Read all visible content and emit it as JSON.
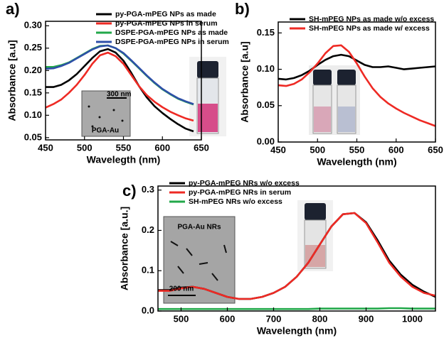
{
  "chart_data": [
    {
      "type": "line",
      "panel_label": "a)",
      "x_label": "Wavelegth (nm)",
      "y_label": "Absorbance [a.u]",
      "xlim": [
        450,
        650
      ],
      "xticks": [
        450,
        500,
        550,
        600,
        650
      ],
      "ylim": [
        0.045,
        0.31
      ],
      "yticks": [
        0.05,
        {
          "value": 0.1,
          "label": "0.10"
        },
        0.15,
        {
          "value": 0.2,
          "label": "0.20"
        },
        0.25,
        {
          "value": 0.3,
          "label": "0.30"
        }
      ],
      "legend": "upper right",
      "inset_labels": [
        "300 nm",
        "PGA-Au"
      ],
      "x": [
        450,
        460,
        470,
        480,
        490,
        500,
        510,
        520,
        530,
        540,
        550,
        560,
        570,
        580,
        590,
        600,
        610,
        620,
        630,
        640
      ],
      "series": [
        {
          "name": "py-PGA-mPEG NPs as made",
          "color": "#000000",
          "values": [
            0.163,
            0.163,
            0.168,
            0.178,
            0.192,
            0.21,
            0.228,
            0.243,
            0.248,
            0.24,
            0.222,
            0.195,
            0.165,
            0.14,
            0.12,
            0.105,
            0.092,
            0.08,
            0.07,
            0.064
          ]
        },
        {
          "name": "py-PGA-mPEG NPs in serum",
          "color": "#ee2a24",
          "values": [
            0.117,
            0.125,
            0.135,
            0.15,
            0.168,
            0.19,
            0.215,
            0.234,
            0.24,
            0.232,
            0.215,
            0.19,
            0.165,
            0.145,
            0.13,
            0.118,
            0.108,
            0.1,
            0.093,
            0.088
          ]
        },
        {
          "name": "DSPE-PGA-mPEG NPs as made",
          "color": "#22a84a",
          "values": [
            0.208,
            0.208,
            0.212,
            0.218,
            0.228,
            0.238,
            0.248,
            0.255,
            0.256,
            0.25,
            0.238,
            0.222,
            0.205,
            0.188,
            0.172,
            0.158,
            0.147,
            0.137,
            0.13,
            0.124
          ]
        },
        {
          "name": "DSPE-PGA-mPEG NPs in serum",
          "color": "#2e4fa8",
          "values": [
            0.204,
            0.205,
            0.21,
            0.217,
            0.227,
            0.237,
            0.247,
            0.254,
            0.256,
            0.25,
            0.239,
            0.223,
            0.206,
            0.189,
            0.173,
            0.159,
            0.148,
            0.138,
            0.131,
            0.125
          ]
        }
      ]
    },
    {
      "type": "line",
      "panel_label": "b)",
      "x_label": "Wavelength (nm)",
      "y_label": "Absorbance [a.u]",
      "xlim": [
        450,
        650
      ],
      "xticks": [
        450,
        500,
        550,
        600,
        650
      ],
      "ylim": [
        0,
        0.165
      ],
      "yticks": [
        {
          "value": 0,
          "label": "0.00"
        },
        0.05,
        {
          "value": 0.1,
          "label": "0.10"
        },
        0.15
      ],
      "legend": "upper left",
      "x": [
        450,
        460,
        470,
        480,
        490,
        500,
        510,
        520,
        530,
        540,
        550,
        560,
        570,
        580,
        590,
        600,
        610,
        620,
        630,
        640,
        650
      ],
      "series": [
        {
          "name": "SH-mPEG NPs as made w/o excess",
          "color": "#000000",
          "values": [
            0.087,
            0.086,
            0.088,
            0.092,
            0.098,
            0.106,
            0.113,
            0.118,
            0.12,
            0.118,
            0.112,
            0.106,
            0.103,
            0.103,
            0.104,
            0.102,
            0.1,
            0.101,
            0.102,
            0.103,
            0.104
          ]
        },
        {
          "name": "SH-mPEG NPs as made w/ excess",
          "color": "#ee2a24",
          "values": [
            0.078,
            0.077,
            0.08,
            0.086,
            0.096,
            0.108,
            0.122,
            0.132,
            0.133,
            0.124,
            0.108,
            0.09,
            0.074,
            0.062,
            0.053,
            0.046,
            0.04,
            0.035,
            0.03,
            0.026,
            0.022
          ]
        }
      ]
    },
    {
      "type": "line",
      "panel_label": "c)",
      "x_label": "Wavelength (nm)",
      "y_label": "Absorbance [a.u.]",
      "xlim": [
        450,
        1050
      ],
      "xticks": [
        500,
        600,
        700,
        800,
        900,
        1000
      ],
      "ylim": [
        0,
        0.31
      ],
      "yticks": [
        {
          "value": 0,
          "label": "0.0"
        },
        0.1,
        0.2,
        0.3
      ],
      "legend": "upper left",
      "inset_labels": [
        "PGA-Au NRs",
        "200 nm"
      ],
      "x": [
        450,
        475,
        500,
        525,
        550,
        575,
        600,
        625,
        650,
        675,
        700,
        725,
        750,
        775,
        800,
        825,
        850,
        875,
        900,
        925,
        950,
        975,
        1000,
        1025,
        1050
      ],
      "series": [
        {
          "name": "py-PGA-mPEG NRs w/o excess",
          "color": "#000000",
          "values": [
            0.052,
            0.052,
            0.058,
            0.06,
            0.055,
            0.045,
            0.035,
            0.03,
            0.03,
            0.035,
            0.045,
            0.06,
            0.085,
            0.12,
            0.165,
            0.21,
            0.24,
            0.243,
            0.22,
            0.175,
            0.125,
            0.09,
            0.065,
            0.048,
            0.035
          ]
        },
        {
          "name": "py-PGA-mPEG NRs in serum",
          "color": "#ee2a24",
          "values": [
            0.05,
            0.05,
            0.056,
            0.06,
            0.055,
            0.045,
            0.035,
            0.03,
            0.03,
            0.035,
            0.045,
            0.06,
            0.085,
            0.12,
            0.165,
            0.21,
            0.24,
            0.243,
            0.218,
            0.17,
            0.12,
            0.085,
            0.06,
            0.045,
            0.038
          ]
        },
        {
          "name": "SH-mPEG NRs w/o excess",
          "color": "#22a84a",
          "values": [
            0.005,
            0.005,
            0.005,
            0.005,
            0.005,
            0.005,
            0.005,
            0.005,
            0.005,
            0.005,
            0.005,
            0.005,
            0.005,
            0.005,
            0.006,
            0.006,
            0.006,
            0.006,
            0.006,
            0.006,
            0.007,
            0.007,
            0.006,
            0.006,
            0.006
          ]
        }
      ]
    }
  ]
}
